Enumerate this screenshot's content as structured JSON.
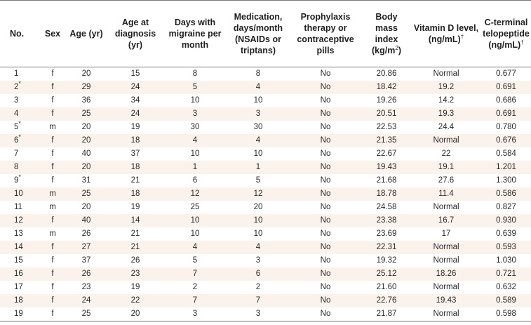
{
  "headers": {
    "no": "No.",
    "sex": "Sex",
    "age": "Age (yr)",
    "age_dx_1": "Age at",
    "age_dx_2": "diagnosis",
    "age_dx_3": "(yr)",
    "days_1": "Days with",
    "days_2": "migraine per",
    "days_3": "month",
    "med_1": "Medication,",
    "med_2": "days/month",
    "med_3": "(NSAIDs or",
    "med_4": "triptans)",
    "pro_1": "Prophylaxis",
    "pro_2": "therapy or",
    "pro_3": "contraceptive",
    "pro_4": "pills",
    "bmi_1": "Body mass",
    "bmi_2": "index",
    "bmi_3": "(kg/m",
    "bmi_sup": "2",
    "bmi_4": ")",
    "vitd_1": "Vitamin D level,",
    "vitd_2": "(ng/mL)",
    "vitd_sup": "†",
    "ctx_1": "C-terminal",
    "ctx_2": "telopeptide",
    "ctx_3": "(ng/mL)",
    "ctx_sup": "†"
  },
  "rows": [
    {
      "no": "1",
      "mark": "",
      "sex": "f",
      "age": "20",
      "age_dx": "15",
      "days": "8",
      "med": "8",
      "pro": "No",
      "bmi": "20.86",
      "vitd": "Normal",
      "ctx": "0.677"
    },
    {
      "no": "2",
      "mark": "*",
      "sex": "f",
      "age": "29",
      "age_dx": "24",
      "days": "5",
      "med": "4",
      "pro": "No",
      "bmi": "18.42",
      "vitd": "19.2",
      "ctx": "0.691"
    },
    {
      "no": "3",
      "mark": "",
      "sex": "f",
      "age": "36",
      "age_dx": "34",
      "days": "10",
      "med": "10",
      "pro": "No",
      "bmi": "19.26",
      "vitd": "14.2",
      "ctx": "0.686"
    },
    {
      "no": "4",
      "mark": "",
      "sex": "f",
      "age": "25",
      "age_dx": "24",
      "days": "3",
      "med": "3",
      "pro": "No",
      "bmi": "20.51",
      "vitd": "19.3",
      "ctx": "0.691"
    },
    {
      "no": "5",
      "mark": "*",
      "sex": "m",
      "age": "20",
      "age_dx": "19",
      "days": "30",
      "med": "30",
      "pro": "No",
      "bmi": "22.53",
      "vitd": "24.4",
      "ctx": "0.780"
    },
    {
      "no": "6",
      "mark": "*",
      "sex": "f",
      "age": "20",
      "age_dx": "18",
      "days": "4",
      "med": "4",
      "pro": "No",
      "bmi": "21.35",
      "vitd": "Normal",
      "ctx": "0.676"
    },
    {
      "no": "7",
      "mark": "",
      "sex": "f",
      "age": "40",
      "age_dx": "37",
      "days": "10",
      "med": "10",
      "pro": "No",
      "bmi": "22.67",
      "vitd": "22",
      "ctx": "0.584"
    },
    {
      "no": "8",
      "mark": "",
      "sex": "f",
      "age": "20",
      "age_dx": "18",
      "days": "1",
      "med": "1",
      "pro": "No",
      "bmi": "19.43",
      "vitd": "19.1",
      "ctx": "1.201"
    },
    {
      "no": "9",
      "mark": "*",
      "sex": "f",
      "age": "31",
      "age_dx": "21",
      "days": "6",
      "med": "5",
      "pro": "No",
      "bmi": "21.68",
      "vitd": "27.6",
      "ctx": "1.300"
    },
    {
      "no": "10",
      "mark": "",
      "sex": "m",
      "age": "25",
      "age_dx": "18",
      "days": "12",
      "med": "12",
      "pro": "No",
      "bmi": "18.78",
      "vitd": "11.4",
      "ctx": "0.586"
    },
    {
      "no": "11",
      "mark": "",
      "sex": "m",
      "age": "20",
      "age_dx": "19",
      "days": "25",
      "med": "20",
      "pro": "No",
      "bmi": "24.58",
      "vitd": "Normal",
      "ctx": "0.827"
    },
    {
      "no": "12",
      "mark": "",
      "sex": "f",
      "age": "40",
      "age_dx": "14",
      "days": "10",
      "med": "10",
      "pro": "No",
      "bmi": "23.38",
      "vitd": "16.7",
      "ctx": "0.930"
    },
    {
      "no": "13",
      "mark": "",
      "sex": "m",
      "age": "26",
      "age_dx": "21",
      "days": "10",
      "med": "10",
      "pro": "No",
      "bmi": "23.69",
      "vitd": "17",
      "ctx": "0.639"
    },
    {
      "no": "14",
      "mark": "",
      "sex": "f",
      "age": "27",
      "age_dx": "21",
      "days": "4",
      "med": "4",
      "pro": "No",
      "bmi": "22.31",
      "vitd": "Normal",
      "ctx": "0.593"
    },
    {
      "no": "15",
      "mark": "",
      "sex": "f",
      "age": "37",
      "age_dx": "26",
      "days": "5",
      "med": "3",
      "pro": "No",
      "bmi": "19.32",
      "vitd": "Normal",
      "ctx": "1.030"
    },
    {
      "no": "16",
      "mark": "",
      "sex": "f",
      "age": "26",
      "age_dx": "23",
      "days": "7",
      "med": "6",
      "pro": "No",
      "bmi": "25.12",
      "vitd": "18.26",
      "ctx": "0.721"
    },
    {
      "no": "17",
      "mark": "",
      "sex": "f",
      "age": "23",
      "age_dx": "19",
      "days": "2",
      "med": "2",
      "pro": "No",
      "bmi": "21.60",
      "vitd": "Normal",
      "ctx": "0.632"
    },
    {
      "no": "18",
      "mark": "",
      "sex": "f",
      "age": "24",
      "age_dx": "22",
      "days": "7",
      "med": "7",
      "pro": "No",
      "bmi": "22.76",
      "vitd": "19.43",
      "ctx": "0.589"
    },
    {
      "no": "19",
      "mark": "",
      "sex": "f",
      "age": "25",
      "age_dx": "20",
      "days": "3",
      "med": "3",
      "pro": "No",
      "bmi": "21.87",
      "vitd": "Normal",
      "ctx": "0.598"
    }
  ],
  "colors": {
    "row_alt_bg": "#fbf2ec",
    "rule": "#7a7a7a"
  }
}
